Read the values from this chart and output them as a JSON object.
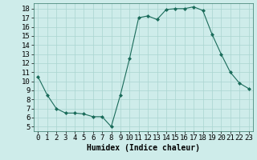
{
  "x": [
    0,
    1,
    2,
    3,
    4,
    5,
    6,
    7,
    8,
    9,
    10,
    11,
    12,
    13,
    14,
    15,
    16,
    17,
    18,
    19,
    20,
    21,
    22,
    23
  ],
  "y": [
    10.5,
    8.5,
    7.0,
    6.5,
    6.5,
    6.4,
    6.1,
    6.1,
    5.0,
    8.5,
    12.5,
    17.0,
    17.2,
    16.8,
    17.9,
    18.0,
    18.0,
    18.2,
    17.8,
    15.2,
    13.0,
    11.0,
    9.8,
    9.2
  ],
  "line_color": "#1a6b5a",
  "marker": "D",
  "marker_size": 2,
  "bg_color": "#ceecea",
  "grid_color": "#aad4d0",
  "xlabel": "Humidex (Indice chaleur)",
  "xlim": [
    -0.5,
    23.5
  ],
  "ylim": [
    4.5,
    18.6
  ],
  "yticks": [
    5,
    6,
    7,
    8,
    9,
    10,
    11,
    12,
    13,
    14,
    15,
    16,
    17,
    18
  ],
  "xticks": [
    0,
    1,
    2,
    3,
    4,
    5,
    6,
    7,
    8,
    9,
    10,
    11,
    12,
    13,
    14,
    15,
    16,
    17,
    18,
    19,
    20,
    21,
    22,
    23
  ],
  "xlabel_fontsize": 7,
  "tick_fontsize": 6.5
}
